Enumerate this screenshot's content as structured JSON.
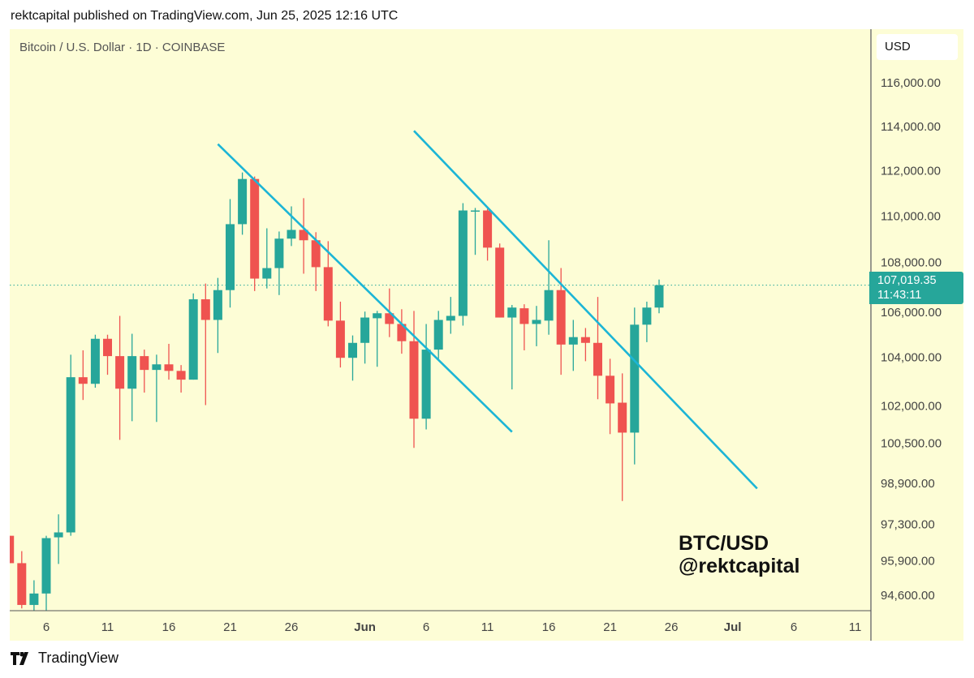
{
  "header": {
    "published": "rektcapital published on TradingView.com, Jun 25, 2025 12:16 UTC"
  },
  "legend": {
    "symbol": "Bitcoin / U.S. Dollar · 1D · COINBASE"
  },
  "price_axis": {
    "currency": "USD"
  },
  "last_price": {
    "value": "107,019.35",
    "countdown": "11:43:11"
  },
  "watermark": {
    "line1": "BTC/USD",
    "line2": "@rektcapital"
  },
  "footer": {
    "brand": "TradingView",
    "logo_icon": "tradingview-logo-icon"
  },
  "colors": {
    "up": "#26a69a",
    "down": "#ef5350",
    "trendline": "#1cb5d6",
    "background": "#fdfdd6"
  },
  "chart_data": {
    "type": "candlestick",
    "scale": "log",
    "ylim": [
      93900,
      117300
    ],
    "grid": false,
    "y_ticks": [
      {
        "value": 116000,
        "label": "116,000.00"
      },
      {
        "value": 114000,
        "label": "114,000.00"
      },
      {
        "value": 112000,
        "label": "112,000.00"
      },
      {
        "value": 110000,
        "label": "110,000.00"
      },
      {
        "value": 108000,
        "label": "108,000.00"
      },
      {
        "value": 106000,
        "label": "106,000.00"
      },
      {
        "value": 104000,
        "label": "104,000.00"
      },
      {
        "value": 102000,
        "label": "102,000.00"
      },
      {
        "value": 100500,
        "label": "100,500.00"
      },
      {
        "value": 98900,
        "label": "98,900.00"
      },
      {
        "value": 97300,
        "label": "97,300.00"
      },
      {
        "value": 95900,
        "label": "95,900.00"
      },
      {
        "value": 94600,
        "label": "94,600.00"
      }
    ],
    "x_ticks": [
      {
        "date": "2025-05-06",
        "label": "6"
      },
      {
        "date": "2025-05-11",
        "label": "11"
      },
      {
        "date": "2025-05-16",
        "label": "16"
      },
      {
        "date": "2025-05-21",
        "label": "21"
      },
      {
        "date": "2025-05-26",
        "label": "26"
      },
      {
        "date": "2025-06-01",
        "label": "Jun",
        "bold": true
      },
      {
        "date": "2025-06-06",
        "label": "6"
      },
      {
        "date": "2025-06-11",
        "label": "11"
      },
      {
        "date": "2025-06-16",
        "label": "16"
      },
      {
        "date": "2025-06-21",
        "label": "21"
      },
      {
        "date": "2025-06-26",
        "label": "26"
      },
      {
        "date": "2025-07-01",
        "label": "Jul",
        "bold": true
      },
      {
        "date": "2025-07-06",
        "label": "6"
      },
      {
        "date": "2025-07-11",
        "label": "11"
      }
    ],
    "ohlc_columns": [
      "date",
      "open",
      "high",
      "low",
      "close"
    ],
    "candles": [
      [
        "2025-05-03",
        96860,
        96860,
        95810,
        95810
      ],
      [
        "2025-05-04",
        95810,
        96270,
        94100,
        94230
      ],
      [
        "2025-05-05",
        94230,
        95160,
        93950,
        94660
      ],
      [
        "2025-05-06",
        94660,
        96860,
        93950,
        96770
      ],
      [
        "2025-05-07",
        96800,
        97690,
        95780,
        96990
      ],
      [
        "2025-05-08",
        96990,
        104100,
        96860,
        103170
      ],
      [
        "2025-05-09",
        103170,
        104280,
        102240,
        102900
      ],
      [
        "2025-05-10",
        102900,
        104930,
        102740,
        104760
      ],
      [
        "2025-05-11",
        104760,
        104930,
        103270,
        104040
      ],
      [
        "2025-05-12",
        104040,
        105720,
        100630,
        102700
      ],
      [
        "2025-05-13",
        102700,
        104970,
        101380,
        104040
      ],
      [
        "2025-05-14",
        104040,
        104310,
        102540,
        103470
      ],
      [
        "2025-05-15",
        103470,
        104100,
        101350,
        103700
      ],
      [
        "2025-05-16",
        103700,
        104550,
        103070,
        103430
      ],
      [
        "2025-05-17",
        103430,
        103670,
        102540,
        103070
      ],
      [
        "2025-05-18",
        103070,
        106670,
        103070,
        106420
      ],
      [
        "2025-05-19",
        106420,
        107090,
        102030,
        105550
      ],
      [
        "2025-05-20",
        105550,
        107330,
        104170,
        106810
      ],
      [
        "2025-05-21",
        106810,
        110750,
        106070,
        109650
      ],
      [
        "2025-05-22",
        109650,
        111930,
        109190,
        111640
      ],
      [
        "2025-05-23",
        111640,
        111750,
        106770,
        107300
      ],
      [
        "2025-05-24",
        107300,
        109470,
        106880,
        107750
      ],
      [
        "2025-05-25",
        107750,
        109330,
        106600,
        109020
      ],
      [
        "2025-05-26",
        109020,
        110430,
        108700,
        109400
      ],
      [
        "2025-05-27",
        109400,
        110790,
        107510,
        108950
      ],
      [
        "2025-05-28",
        108950,
        109300,
        106770,
        107790
      ],
      [
        "2025-05-29",
        107790,
        108910,
        105280,
        105520
      ],
      [
        "2025-05-30",
        105520,
        106320,
        103570,
        103970
      ],
      [
        "2025-05-31",
        103970,
        104900,
        103030,
        104590
      ],
      [
        "2025-06-01",
        104590,
        105900,
        103730,
        105650
      ],
      [
        "2025-06-02",
        105620,
        105930,
        103600,
        105830
      ],
      [
        "2025-06-03",
        105830,
        106880,
        104830,
        105380
      ],
      [
        "2025-06-04",
        105380,
        106000,
        104140,
        104660
      ],
      [
        "2025-06-05",
        104660,
        105930,
        100310,
        101480
      ],
      [
        "2025-06-06",
        101480,
        105380,
        101050,
        104310
      ],
      [
        "2025-06-07",
        104310,
        105930,
        103930,
        105550
      ],
      [
        "2025-06-08",
        105520,
        106520,
        104970,
        105720
      ],
      [
        "2025-06-09",
        105720,
        110570,
        105310,
        110250
      ],
      [
        "2025-06-10",
        110210,
        110360,
        108320,
        110250
      ],
      [
        "2025-06-11",
        110250,
        110320,
        108070,
        108630
      ],
      [
        "2025-06-12",
        108630,
        108810,
        105650,
        105650
      ],
      [
        "2025-06-13",
        105650,
        106180,
        102670,
        106070
      ],
      [
        "2025-06-14",
        106040,
        106210,
        104280,
        105380
      ],
      [
        "2025-06-15",
        105380,
        106140,
        104450,
        105550
      ],
      [
        "2025-06-16",
        105520,
        108950,
        104930,
        106810
      ],
      [
        "2025-06-17",
        106810,
        107750,
        103270,
        104520
      ],
      [
        "2025-06-18",
        104520,
        105550,
        103430,
        104830
      ],
      [
        "2025-06-19",
        104830,
        105210,
        103830,
        104590
      ],
      [
        "2025-06-20",
        104590,
        106520,
        102270,
        103230
      ],
      [
        "2025-06-21",
        103230,
        103930,
        100860,
        102100
      ],
      [
        "2025-06-22",
        102130,
        103330,
        98210,
        100920
      ],
      [
        "2025-06-23",
        100920,
        106070,
        99650,
        105350
      ],
      [
        "2025-06-24",
        105350,
        106320,
        104620,
        106070
      ],
      [
        "2025-06-25",
        106070,
        107260,
        105830,
        107019.35
      ]
    ],
    "last_price_line": 107019.35,
    "trendlines": [
      {
        "from": [
          "2025-05-20",
          113200
        ],
        "to": [
          "2025-06-13",
          100950
        ]
      },
      {
        "from": [
          "2025-06-05",
          113800
        ],
        "to": [
          "2025-07-03",
          98700
        ]
      }
    ]
  }
}
